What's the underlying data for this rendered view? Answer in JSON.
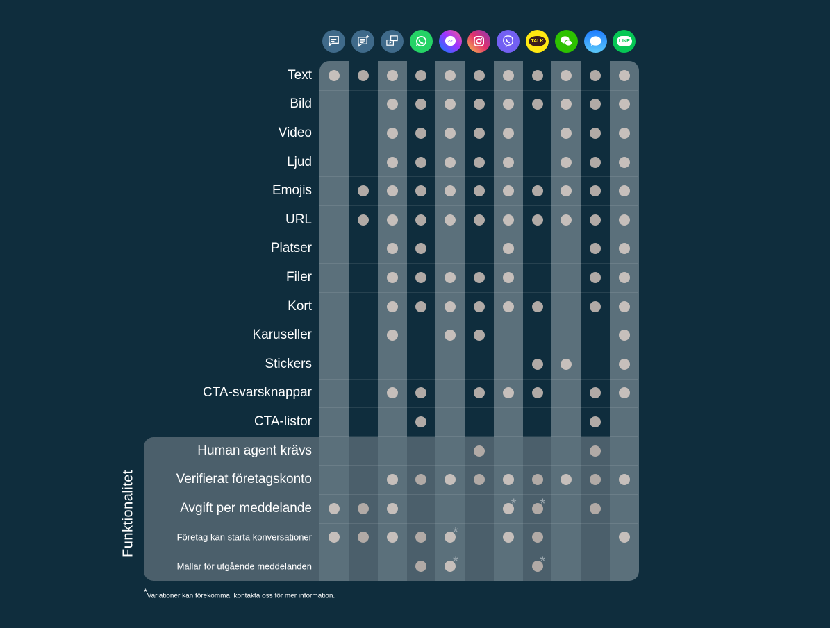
{
  "channels": [
    {
      "name": "sms",
      "icon": "sms-chat-icon",
      "color": "#3f6a8a"
    },
    {
      "name": "rich-sms",
      "icon": "rich-sms-icon",
      "color": "#3f6a8a"
    },
    {
      "name": "rcs",
      "icon": "rcs-media-chat-icon",
      "color": "#3f6a8a"
    },
    {
      "name": "whatsapp",
      "icon": "whatsapp-icon",
      "color": "#25d366"
    },
    {
      "name": "messenger",
      "icon": "messenger-icon",
      "color": "#7b4dff"
    },
    {
      "name": "instagram",
      "icon": "instagram-icon",
      "color": "#e1306c"
    },
    {
      "name": "viber",
      "icon": "viber-icon",
      "color": "#7360f2"
    },
    {
      "name": "kakaotalk",
      "icon": "kakaotalk-icon",
      "color": "#ffe812",
      "logo_text": "TALK"
    },
    {
      "name": "wechat",
      "icon": "wechat-icon",
      "color": "#2dc100"
    },
    {
      "name": "apple-messages",
      "icon": "apple-messages-icon",
      "color": "#2f8cff"
    },
    {
      "name": "line",
      "icon": "line-icon",
      "color": "#06c755",
      "logo_text": "LINE"
    }
  ],
  "rows": [
    {
      "label": "Text",
      "cells": [
        1,
        1,
        1,
        1,
        1,
        1,
        1,
        1,
        1,
        1,
        1
      ]
    },
    {
      "label": "Bild",
      "cells": [
        0,
        0,
        1,
        1,
        1,
        1,
        1,
        1,
        1,
        1,
        1
      ]
    },
    {
      "label": "Video",
      "cells": [
        0,
        0,
        1,
        1,
        1,
        1,
        1,
        0,
        1,
        1,
        1
      ]
    },
    {
      "label": "Ljud",
      "cells": [
        0,
        0,
        1,
        1,
        1,
        1,
        1,
        0,
        1,
        1,
        1
      ]
    },
    {
      "label": "Emojis",
      "cells": [
        0,
        1,
        1,
        1,
        1,
        1,
        1,
        1,
        1,
        1,
        1
      ]
    },
    {
      "label": "URL",
      "cells": [
        0,
        1,
        1,
        1,
        1,
        1,
        1,
        1,
        1,
        1,
        1
      ]
    },
    {
      "label": "Platser",
      "cells": [
        0,
        0,
        1,
        1,
        0,
        0,
        1,
        0,
        0,
        1,
        1
      ]
    },
    {
      "label": "Filer",
      "cells": [
        0,
        0,
        1,
        1,
        1,
        1,
        1,
        0,
        0,
        1,
        1
      ]
    },
    {
      "label": "Kort",
      "cells": [
        0,
        0,
        1,
        1,
        1,
        1,
        1,
        1,
        0,
        1,
        1
      ]
    },
    {
      "label": "Karuseller",
      "cells": [
        0,
        0,
        1,
        0,
        1,
        1,
        0,
        0,
        0,
        0,
        1
      ]
    },
    {
      "label": "Stickers",
      "cells": [
        0,
        0,
        0,
        0,
        0,
        0,
        0,
        1,
        1,
        0,
        1
      ]
    },
    {
      "label": "CTA-svarsknappar",
      "cells": [
        0,
        0,
        1,
        1,
        0,
        1,
        1,
        1,
        0,
        1,
        1
      ]
    },
    {
      "label": "CTA-listor",
      "cells": [
        0,
        0,
        0,
        1,
        0,
        0,
        0,
        0,
        0,
        1,
        0
      ]
    },
    {
      "label": "Human agent krävs",
      "cells": [
        0,
        0,
        0,
        0,
        0,
        1,
        0,
        0,
        0,
        1,
        0
      ]
    },
    {
      "label": "Verifierat företagskonto",
      "cells": [
        0,
        0,
        1,
        1,
        1,
        1,
        1,
        1,
        1,
        1,
        1
      ]
    },
    {
      "label": "Avgift per meddelande",
      "cells": [
        1,
        1,
        1,
        0,
        0,
        0,
        2,
        2,
        0,
        1,
        0
      ]
    },
    {
      "label": "Företag kan starta konversationer",
      "small": true,
      "cells": [
        1,
        1,
        1,
        1,
        2,
        0,
        1,
        1,
        0,
        0,
        1
      ]
    },
    {
      "label": "Mallar för utgående meddelanden",
      "small": true,
      "cells": [
        0,
        0,
        0,
        1,
        2,
        0,
        0,
        2,
        0,
        0,
        0
      ]
    }
  ],
  "section_label": "Funktionalitet",
  "asterisk": "*",
  "footnote": "Variationer kan förekomma, kontakta oss för mer information.",
  "colors": {
    "background": "#0f2d3d",
    "band": "#5b707b",
    "panel": "#4b5f6b",
    "dot": "#c6bfbb"
  }
}
